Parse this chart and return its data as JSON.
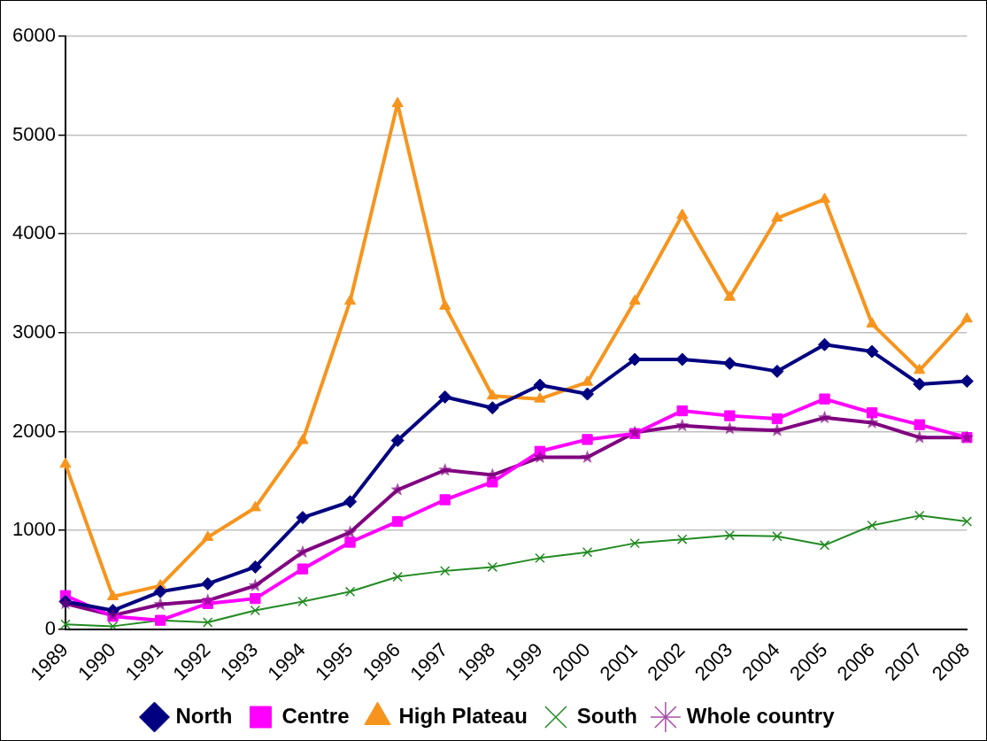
{
  "chart_data": {
    "type": "line",
    "categories": [
      "1989",
      "1990",
      "1991",
      "1992",
      "1993",
      "1994",
      "1995",
      "1996",
      "1997",
      "1998",
      "1999",
      "2000",
      "2001",
      "2002",
      "2003",
      "2004",
      "2005",
      "2006",
      "2007",
      "2008"
    ],
    "series": [
      {
        "name": "North",
        "color": "#000080",
        "marker": "diamond",
        "values": [
          280,
          190,
          380,
          460,
          630,
          1130,
          1290,
          1910,
          2350,
          2240,
          2470,
          2380,
          2730,
          2730,
          2690,
          2610,
          2880,
          2810,
          2480,
          2510
        ]
      },
      {
        "name": "Centre",
        "color": "#ff00ff",
        "marker": "square",
        "values": [
          340,
          130,
          90,
          260,
          310,
          610,
          880,
          1090,
          1310,
          1490,
          1800,
          1920,
          1980,
          2210,
          2160,
          2130,
          2330,
          2190,
          2070,
          1940
        ]
      },
      {
        "name": "High Plateau",
        "color": "#f7941d",
        "marker": "triangle",
        "values": [
          1670,
          330,
          440,
          930,
          1230,
          1910,
          3320,
          5320,
          3270,
          2360,
          2330,
          2500,
          3320,
          4190,
          3360,
          4160,
          4350,
          3090,
          2620,
          3140
        ]
      },
      {
        "name": "South",
        "color": "#228b22",
        "marker": "cross",
        "values": [
          50,
          30,
          90,
          70,
          190,
          280,
          380,
          530,
          590,
          630,
          720,
          780,
          870,
          910,
          950,
          940,
          850,
          1050,
          1150,
          1090
        ]
      },
      {
        "name": "Whole country",
        "color": "#800080",
        "marker": "star",
        "values": [
          260,
          140,
          250,
          290,
          440,
          780,
          980,
          1410,
          1610,
          1560,
          1740,
          1740,
          1990,
          2060,
          2030,
          2010,
          2140,
          2090,
          1940,
          1940
        ]
      }
    ],
    "ylim": [
      0,
      6000
    ],
    "yticks": [
      0,
      1000,
      2000,
      3000,
      4000,
      5000,
      6000
    ],
    "grid": "y",
    "legend": "bottom",
    "line_style": "solid"
  }
}
